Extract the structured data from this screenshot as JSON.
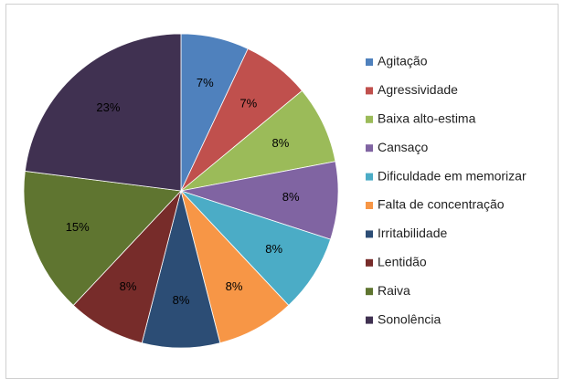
{
  "chart_data": {
    "type": "pie",
    "categories": [
      "Agitação",
      "Agressividade",
      "Baixa alto-estima",
      "Cansaço",
      "Dificuldade em memorizar",
      "Falta de concentração",
      "Irritabilidade",
      "Lentidão",
      "Raiva",
      "Sonolência"
    ],
    "values": [
      7,
      7,
      8,
      8,
      8,
      8,
      8,
      8,
      15,
      23
    ],
    "value_labels": [
      "7%",
      "7%",
      "8%",
      "8%",
      "8%",
      "8%",
      "8%",
      "8%",
      "15%",
      "23%"
    ],
    "colors": [
      "#4f81bd",
      "#c0504d",
      "#9bbb59",
      "#8064a2",
      "#4bacc6",
      "#f79646",
      "#2c4d75",
      "#772c2a",
      "#5f7530",
      "#403151"
    ],
    "legend": "right"
  }
}
